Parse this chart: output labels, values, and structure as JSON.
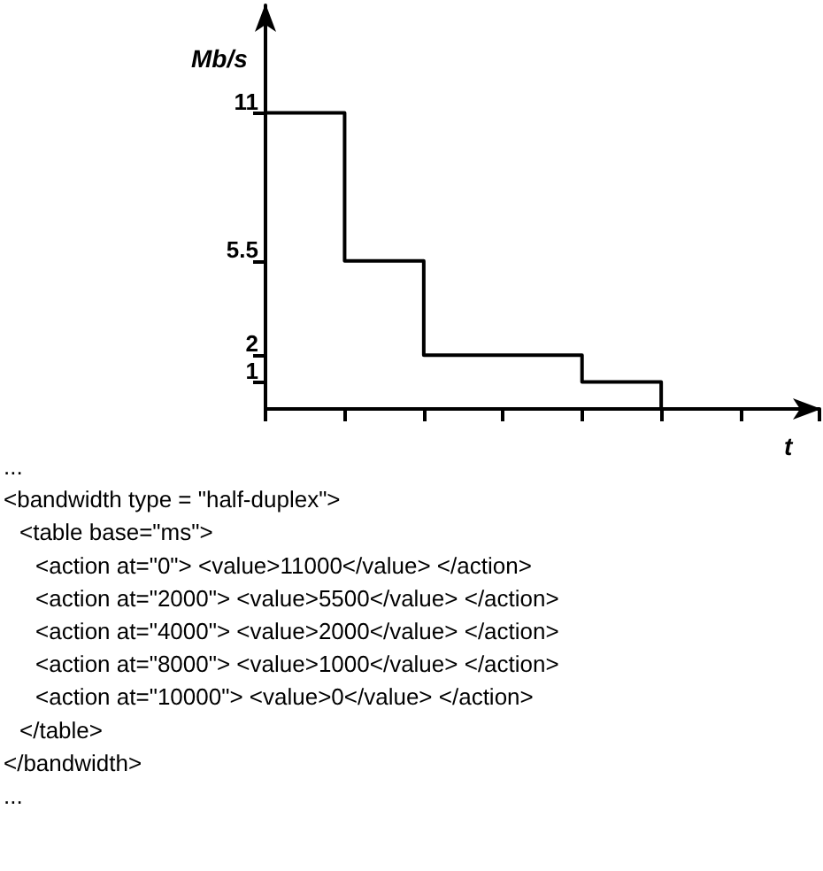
{
  "chart_data": {
    "type": "step",
    "ylabel": "Mb/s",
    "xlabel": "t",
    "categories": [
      null,
      null,
      null,
      null,
      null,
      null,
      null
    ],
    "values": [
      11,
      11,
      5.5,
      2,
      2,
      1,
      0
    ],
    "color": "#000000",
    "marker": "none",
    "line_style": "solid",
    "grid": false,
    "tick_labels": "y",
    "ylim": [
      0,
      15
    ],
    "yticks": [
      1,
      2,
      5.5,
      11
    ],
    "annotations": [
      "...",
      "<bandwidth type = \"half-duplex\">",
      " <table base=\"ms\">",
      "  <action at=\"0\"> <value>11000</value> </action>",
      "  <action at=\"2000\"> <value>5500</value> </action>",
      "  <action at=\"4000\"> <value>2000</value> </action>",
      "  <action at=\"8000\"> <value>1000</value> </action>",
      "  <action at=\"10000\"> <value>0</value> </action>",
      " </table>",
      "</bandwidth>",
      "..."
    ]
  }
}
